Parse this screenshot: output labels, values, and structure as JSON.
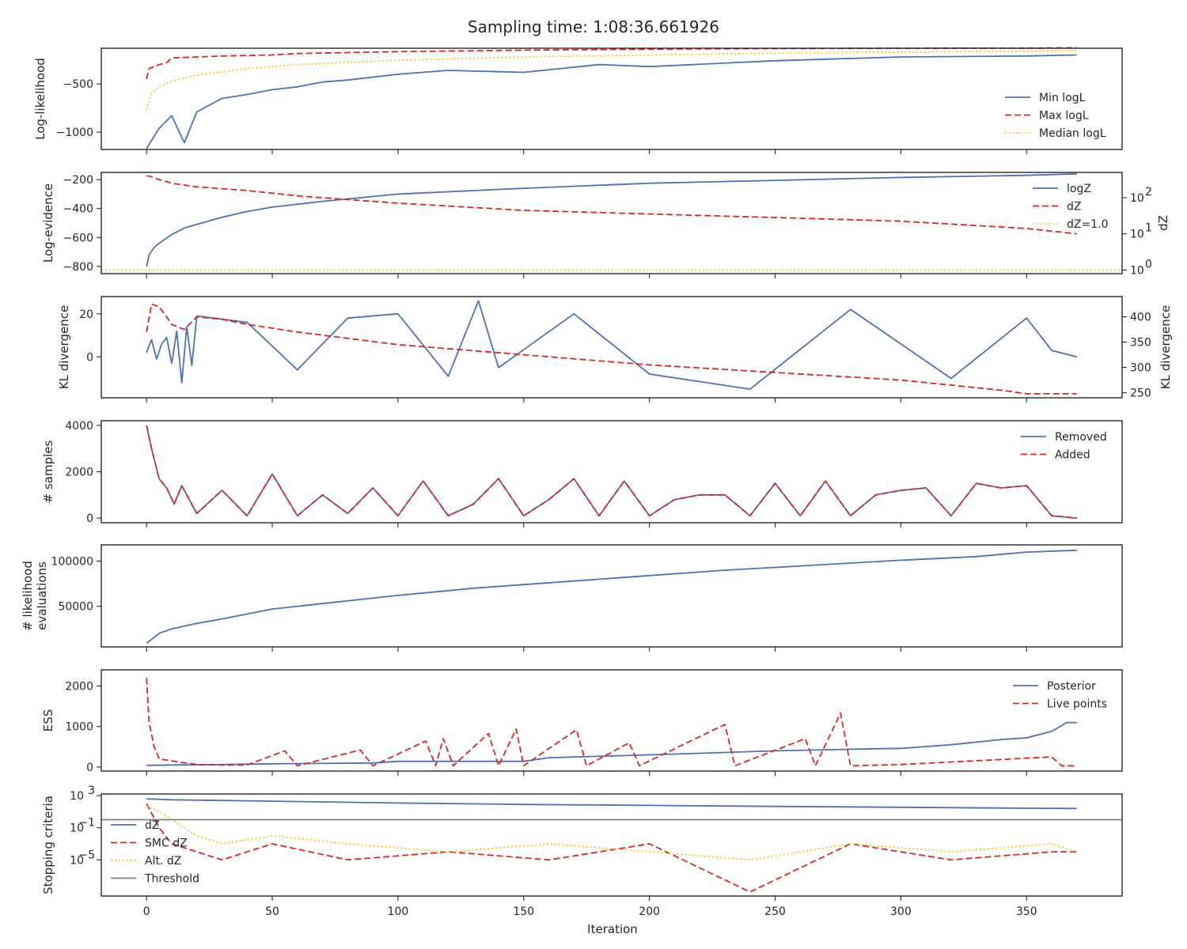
{
  "figure": {
    "title": "Sampling time: 1:08:36.661926",
    "xlabel": "Iteration",
    "xlim": [
      -18,
      388
    ],
    "xticks": [
      0,
      50,
      100,
      150,
      200,
      250,
      300,
      350
    ],
    "colors": {
      "blue": "#4c72b0",
      "red": "#d62728",
      "gold": "#f5c518",
      "gray": "#808080"
    }
  },
  "chart_data": [
    {
      "type": "line",
      "ylabel": "Log-likelihood",
      "ylim": [
        -1180,
        -130
      ],
      "yticks": [
        -500,
        -1000
      ],
      "ytick_labels": [
        "−500",
        "−1000"
      ],
      "legend_placement": "lower-right",
      "series": [
        {
          "name": "Min logL",
          "style": "solid",
          "color": "#4c72b0",
          "x": [
            0,
            5,
            10,
            15,
            20,
            30,
            40,
            50,
            60,
            70,
            80,
            100,
            120,
            150,
            180,
            200,
            250,
            300,
            350,
            370
          ],
          "y": [
            -1170,
            -960,
            -830,
            -1110,
            -790,
            -650,
            -610,
            -560,
            -530,
            -480,
            -460,
            -400,
            -360,
            -380,
            -300,
            -320,
            -260,
            -220,
            -210,
            -200
          ]
        },
        {
          "name": "Max logL",
          "style": "dashed",
          "color": "#d62728",
          "x": [
            0,
            1,
            3,
            5,
            8,
            10,
            20,
            30,
            50,
            60,
            100,
            150,
            200,
            230,
            300,
            350,
            370
          ],
          "y": [
            -450,
            -340,
            -320,
            -300,
            -280,
            -230,
            -220,
            -210,
            -200,
            -185,
            -165,
            -150,
            -140,
            -135,
            -130,
            -128,
            -125
          ]
        },
        {
          "name": "Median logL",
          "style": "dotted",
          "color": "#f5c518",
          "x": [
            0,
            2,
            5,
            10,
            20,
            40,
            60,
            100,
            150,
            200,
            250,
            300,
            350,
            370
          ],
          "y": [
            -770,
            -600,
            -530,
            -470,
            -410,
            -340,
            -300,
            -255,
            -220,
            -200,
            -180,
            -170,
            -160,
            -155
          ]
        }
      ]
    },
    {
      "type": "line",
      "ylabel": "Log-evidence",
      "ylabel_right": "dZ",
      "ylim": [
        -850,
        -150
      ],
      "yticks": [
        -200,
        -400,
        -600,
        -800
      ],
      "ytick_labels": [
        "−200",
        "−400",
        "−600",
        "−800"
      ],
      "right_log_range": [
        -0.1,
        2.7
      ],
      "right_ticks": [
        0,
        1,
        2
      ],
      "right_tick_labels": [
        "10",
        "10",
        "10"
      ],
      "right_tick_exponents": [
        "0",
        "1",
        "2"
      ],
      "legend_placement": "upper-right",
      "series": [
        {
          "name": "logZ",
          "style": "solid",
          "color": "#4c72b0",
          "axis": "left",
          "x": [
            0,
            1,
            3,
            5,
            10,
            15,
            20,
            30,
            40,
            50,
            70,
            100,
            150,
            200,
            250,
            300,
            350,
            370
          ],
          "y": [
            -800,
            -720,
            -670,
            -640,
            -580,
            -535,
            -510,
            -460,
            -420,
            -390,
            -350,
            -300,
            -260,
            -225,
            -205,
            -185,
            -170,
            -160
          ]
        },
        {
          "name": "dZ",
          "style": "dashed",
          "color": "#d62728",
          "axis": "right_log",
          "x": [
            0,
            1,
            5,
            10,
            20,
            40,
            60,
            80,
            100,
            150,
            200,
            250,
            300,
            350,
            370
          ],
          "y": [
            2.6,
            2.6,
            2.5,
            2.4,
            2.3,
            2.2,
            2.05,
            1.95,
            1.85,
            1.65,
            1.55,
            1.45,
            1.35,
            1.15,
            1.0
          ]
        },
        {
          "name": "dZ=1.0",
          "style": "dotted",
          "color": "#f5c518",
          "axis": "right_log",
          "x": [
            -18,
            388
          ],
          "y": [
            0,
            0
          ]
        }
      ]
    },
    {
      "type": "line",
      "ylabel": "KL divergence",
      "ylabel_right": "KL divergence",
      "ylim": [
        -19,
        28
      ],
      "yticks": [
        20,
        0
      ],
      "ytick_labels": [
        "20",
        "0"
      ],
      "right_ylim": [
        240,
        440
      ],
      "right_ticks": [
        400,
        350,
        300,
        250
      ],
      "legend_placement": "none",
      "series": [
        {
          "name": "",
          "style": "solid",
          "color": "#4c72b0",
          "axis": "left",
          "x": [
            0,
            2,
            4,
            6,
            8,
            10,
            12,
            14,
            16,
            18,
            20,
            40,
            60,
            80,
            100,
            120,
            132,
            140,
            170,
            200,
            240,
            280,
            320,
            350,
            360,
            370
          ],
          "y": [
            2,
            8,
            -1,
            6,
            9,
            -3,
            12,
            -12,
            14,
            -4,
            19,
            16,
            -6,
            18,
            20,
            -9,
            26,
            -5,
            20,
            -8,
            -15,
            22,
            -10,
            18,
            3,
            0
          ]
        },
        {
          "name": "",
          "style": "dashed",
          "color": "#d62728",
          "axis": "right",
          "x": [
            0,
            2,
            5,
            8,
            10,
            15,
            20,
            30,
            40,
            60,
            100,
            150,
            200,
            250,
            300,
            340,
            350,
            370
          ],
          "y": [
            370,
            425,
            420,
            400,
            385,
            375,
            400,
            395,
            385,
            370,
            345,
            325,
            305,
            290,
            275,
            255,
            248,
            248
          ]
        }
      ]
    },
    {
      "type": "line",
      "ylabel": "# samples",
      "ylim": [
        -200,
        4200
      ],
      "yticks": [
        4000,
        2000,
        0
      ],
      "ytick_labels": [
        "4000",
        "2000",
        "0"
      ],
      "legend_placement": "upper-right",
      "series": [
        {
          "name": "Removed",
          "style": "solid",
          "color": "#4c72b0",
          "x": [
            0,
            2,
            5,
            8,
            11,
            14,
            20,
            30,
            40,
            50,
            60,
            70,
            80,
            90,
            100,
            110,
            120,
            130,
            140,
            150,
            160,
            170,
            180,
            190,
            200,
            210,
            220,
            230,
            240,
            250,
            260,
            270,
            280,
            290,
            300,
            310,
            320,
            330,
            340,
            350,
            360,
            370
          ],
          "y": [
            4000,
            3000,
            1700,
            1300,
            600,
            1400,
            200,
            1200,
            100,
            1900,
            100,
            1000,
            200,
            1300,
            100,
            1600,
            100,
            600,
            1700,
            100,
            800,
            1700,
            100,
            1600,
            100,
            800,
            1000,
            1000,
            100,
            1500,
            100,
            1600,
            100,
            1000,
            1200,
            1300,
            100,
            1500,
            1300,
            1400,
            100,
            0
          ]
        },
        {
          "name": "Added",
          "style": "dashed",
          "color": "#d62728",
          "x": [
            0,
            2,
            5,
            8,
            11,
            14,
            20,
            30,
            40,
            50,
            60,
            70,
            80,
            90,
            100,
            110,
            120,
            130,
            140,
            150,
            160,
            170,
            180,
            190,
            200,
            210,
            220,
            230,
            240,
            250,
            260,
            270,
            280,
            290,
            300,
            310,
            320,
            330,
            340,
            350,
            360,
            370
          ],
          "y": [
            4000,
            3000,
            1700,
            1300,
            600,
            1400,
            200,
            1200,
            100,
            1900,
            100,
            1000,
            200,
            1300,
            100,
            1600,
            100,
            600,
            1700,
            100,
            800,
            1700,
            100,
            1600,
            100,
            800,
            1000,
            1000,
            100,
            1500,
            100,
            1600,
            100,
            1000,
            1200,
            1300,
            100,
            1500,
            1300,
            1400,
            100,
            0
          ]
        }
      ]
    },
    {
      "type": "line",
      "ylabel": "# likelihood\nevaluations",
      "ylim": [
        5000,
        118000
      ],
      "yticks": [
        100000,
        50000
      ],
      "ytick_labels": [
        "100000",
        "50000"
      ],
      "legend_placement": "none",
      "series": [
        {
          "name": "",
          "style": "solid",
          "color": "#4c72b0",
          "x": [
            0,
            5,
            10,
            20,
            30,
            50,
            70,
            100,
            130,
            150,
            170,
            200,
            230,
            250,
            300,
            330,
            350,
            370
          ],
          "y": [
            9000,
            20000,
            25000,
            31000,
            36000,
            47000,
            53000,
            62000,
            70000,
            74000,
            78000,
            84000,
            90000,
            93000,
            101000,
            105000,
            110000,
            112000
          ]
        }
      ]
    },
    {
      "type": "line",
      "ylabel": "ESS",
      "ylim": [
        -100,
        2400
      ],
      "yticks": [
        2000,
        1000,
        0
      ],
      "ytick_labels": [
        "2000",
        "1000",
        "0"
      ],
      "legend_placement": "upper-right",
      "series": [
        {
          "name": "Posterior",
          "style": "solid",
          "color": "#4c72b0",
          "x": [
            0,
            10,
            30,
            50,
            90,
            100,
            150,
            160,
            200,
            220,
            250,
            290,
            300,
            320,
            340,
            350,
            360,
            366,
            370
          ],
          "y": [
            40,
            50,
            60,
            80,
            100,
            140,
            140,
            230,
            300,
            340,
            400,
            450,
            460,
            550,
            680,
            720,
            880,
            1100,
            1100
          ]
        },
        {
          "name": "Live points",
          "style": "dashed",
          "color": "#d62728",
          "x": [
            0,
            1,
            3,
            5,
            10,
            20,
            30,
            40,
            55,
            60,
            85,
            90,
            111,
            115,
            118,
            122,
            136,
            140,
            147,
            150,
            171,
            175,
            192,
            196,
            230,
            234,
            262,
            266,
            276,
            280,
            300,
            360,
            364,
            370
          ],
          "y": [
            2200,
            1100,
            500,
            200,
            150,
            60,
            50,
            50,
            400,
            30,
            420,
            30,
            640,
            30,
            700,
            30,
            830,
            30,
            940,
            30,
            920,
            30,
            600,
            30,
            1050,
            30,
            700,
            30,
            1330,
            30,
            60,
            250,
            30,
            30
          ]
        }
      ]
    },
    {
      "type": "line",
      "ylabel": "Stopping criteria",
      "ylog": true,
      "ylim_log10": [
        -9.5,
        3.2
      ],
      "yticks_log10": [
        3,
        -1,
        -5
      ],
      "ytick_labels": [
        "10",
        "10",
        "10"
      ],
      "ytick_exponents": [
        "3",
        "−1",
        "−5"
      ],
      "legend_placement": "left",
      "series": [
        {
          "name": "dZ",
          "style": "solid",
          "color": "#4c72b0",
          "x": [
            0,
            10,
            50,
            100,
            150,
            200,
            250,
            300,
            350,
            370
          ],
          "y": [
            400,
            300,
            200,
            120,
            80,
            60,
            45,
            35,
            27,
            25
          ]
        },
        {
          "name": "SMC dZ",
          "style": "dashed",
          "color": "#d62728",
          "x": [
            0,
            5,
            10,
            20,
            30,
            50,
            80,
            120,
            160,
            200,
            240,
            280,
            320,
            360,
            370
          ],
          "y": [
            100,
            0.1,
            0.001,
            0.0001,
            1e-05,
            0.001,
            1e-05,
            0.0001,
            1e-05,
            0.001,
            1e-09,
            0.001,
            1e-05,
            0.0001,
            0.0001
          ]
        },
        {
          "name": "Alt. dZ",
          "style": "dotted",
          "color": "#f5c518",
          "x": [
            0,
            5,
            10,
            20,
            30,
            50,
            80,
            120,
            160,
            200,
            240,
            280,
            320,
            360,
            370
          ],
          "y": [
            50,
            10,
            1,
            0.01,
            0.001,
            0.01,
            0.001,
            0.0001,
            0.001,
            0.0001,
            1e-05,
            0.001,
            0.0001,
            0.001,
            0.0001
          ]
        },
        {
          "name": "Threshold",
          "style": "solid",
          "color": "#808080",
          "x": [
            -18,
            388
          ],
          "y": [
            1,
            1
          ]
        }
      ]
    }
  ]
}
